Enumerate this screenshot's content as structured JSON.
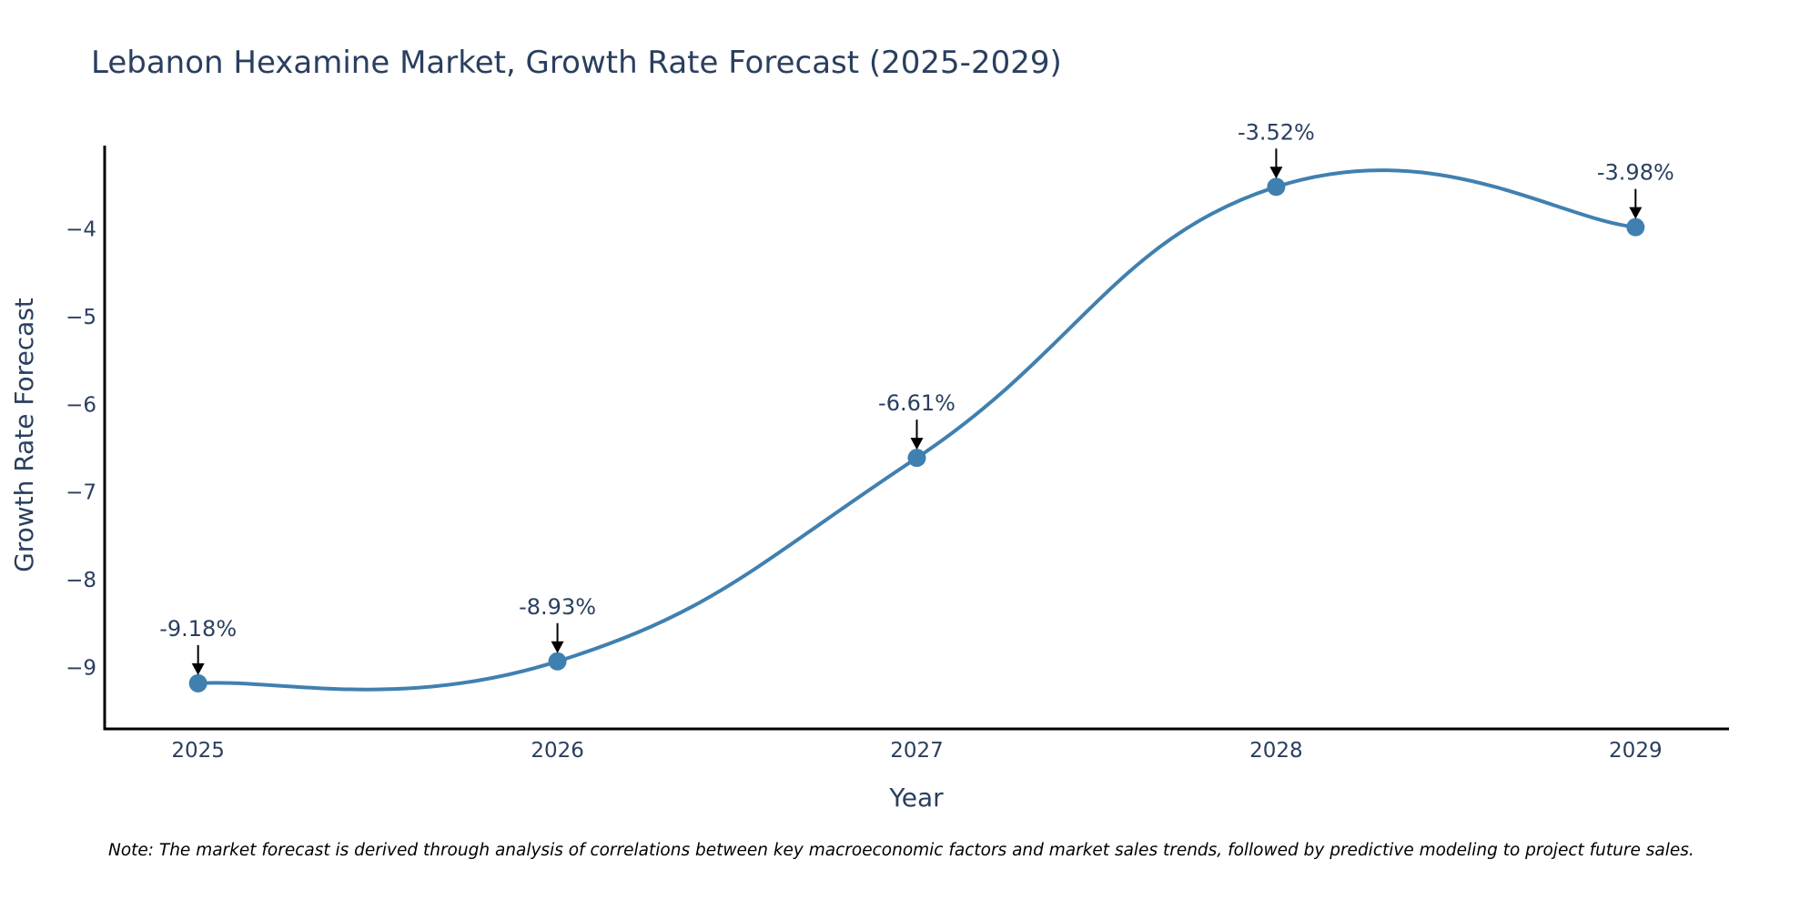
{
  "chart_data": {
    "type": "line",
    "title": "Lebanon Hexamine Market, Growth Rate Forecast (2025-2029)",
    "xlabel": "Year",
    "ylabel": "Growth Rate Forecast",
    "categories": [
      "2025",
      "2026",
      "2027",
      "2028",
      "2029"
    ],
    "series": [
      {
        "name": "Growth Rate Forecast",
        "values": [
          -9.18,
          -8.93,
          -6.61,
          -3.52,
          -3.98
        ],
        "labels": [
          "-9.18%",
          "-8.93%",
          "-6.61%",
          "-3.52%",
          "-3.98%"
        ],
        "color": "#4080b0"
      }
    ],
    "yticks": [
      -9,
      -8,
      -7,
      -6,
      -5,
      -4
    ],
    "ytick_labels": [
      "−9",
      "−8",
      "−7",
      "−6",
      "−5",
      "−4"
    ],
    "ylim": [
      -9.7,
      -3.05
    ],
    "xlim": [
      -0.26,
      4.26
    ],
    "grid": false,
    "line_shape": "spline"
  },
  "note": "Note: The market forecast is derived through analysis of correlations between key macroeconomic factors and market sales trends, followed by predictive modeling to project future sales."
}
